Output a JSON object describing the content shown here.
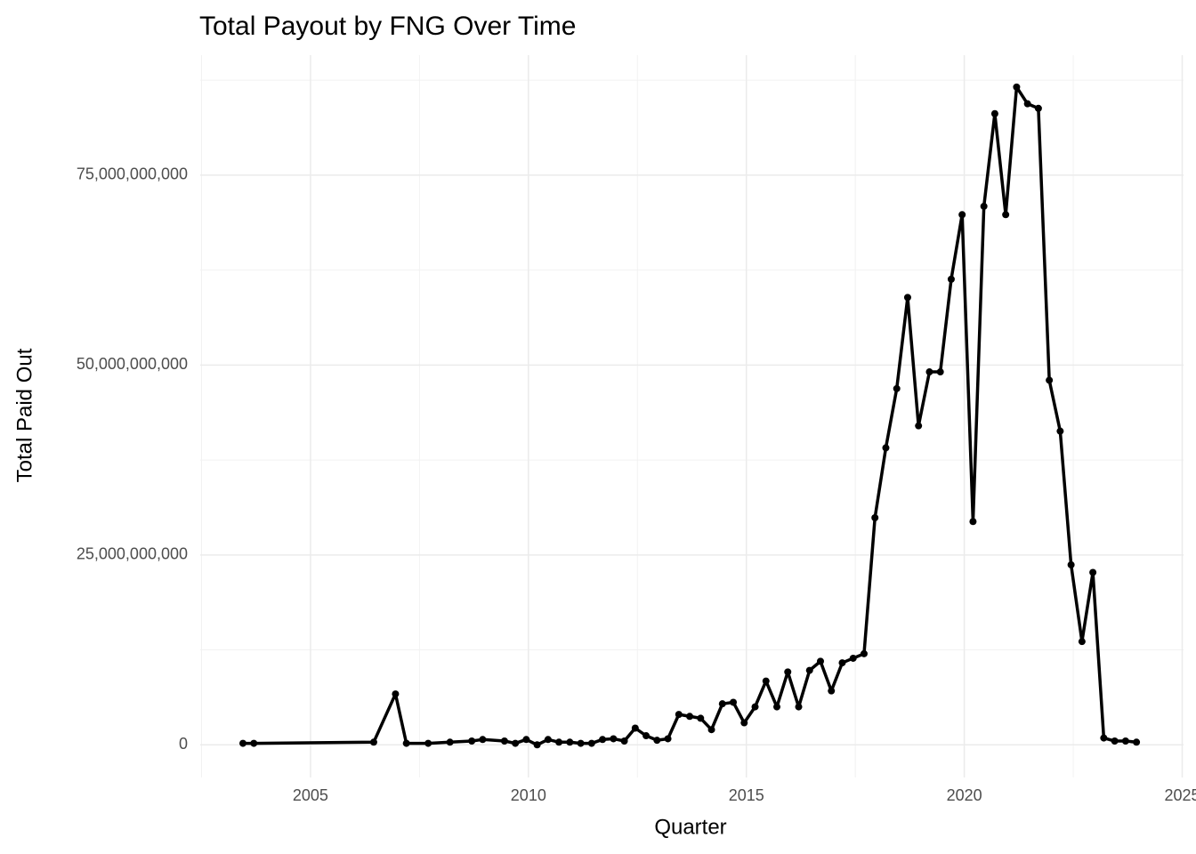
{
  "chart_data": {
    "type": "line",
    "title": "Total Payout by FNG Over Time",
    "x_label": "Quarter",
    "y_label": "Total Paid Out",
    "x": [
      2003.45,
      2003.7,
      2006.45,
      2006.95,
      2007.2,
      2007.7,
      2008.2,
      2008.7,
      2008.95,
      2009.45,
      2009.7,
      2009.95,
      2010.2,
      2010.45,
      2010.7,
      2010.95,
      2011.2,
      2011.45,
      2011.7,
      2011.95,
      2012.2,
      2012.45,
      2012.7,
      2012.95,
      2013.2,
      2013.45,
      2013.7,
      2013.95,
      2014.2,
      2014.45,
      2014.7,
      2014.95,
      2015.2,
      2015.45,
      2015.7,
      2015.95,
      2016.2,
      2016.45,
      2016.7,
      2016.95,
      2017.2,
      2017.45,
      2017.7,
      2017.95,
      2018.2,
      2018.45,
      2018.7,
      2018.95,
      2019.2,
      2019.45,
      2019.7,
      2019.95,
      2020.2,
      2020.45,
      2020.7,
      2020.95,
      2021.2,
      2021.45,
      2021.7,
      2021.95,
      2022.2,
      2022.45,
      2022.7,
      2022.95,
      2023.2,
      2023.45,
      2023.7,
      2023.95
    ],
    "series": [
      {
        "name": "Total Paid Out",
        "color": "#000000",
        "values": [
          200000000,
          200000000,
          350000000,
          6700000000,
          200000000,
          200000000,
          350000000,
          500000000,
          700000000,
          500000000,
          200000000,
          700000000,
          0,
          700000000,
          350000000,
          350000000,
          200000000,
          200000000,
          700000000,
          800000000,
          500000000,
          2200000000,
          1200000000,
          600000000,
          800000000,
          4000000000,
          3750000000,
          3500000000,
          2000000000,
          5400000000,
          5600000000,
          2900000000,
          5000000000,
          8400000000,
          5000000000,
          9600000000,
          5000000000,
          9800000000,
          11000000000,
          7100000000,
          10800000000,
          11400000000,
          12000000000,
          29900000000,
          39100000000,
          46900000000,
          58900000000,
          42000000000,
          49100000000,
          49100000000,
          61300000000,
          69800000000,
          29400000000,
          70900000000,
          83100000000,
          69800000000,
          86600000000,
          84400000000,
          83800000000,
          48000000000,
          41300000000,
          23700000000,
          13600000000,
          22700000000,
          900000000,
          500000000,
          500000000,
          350000000
        ]
      }
    ],
    "xlim": [
      2002.47,
      2025.03
    ],
    "ylim": [
      -4300000000,
      90800000000
    ],
    "xticks": [
      2005,
      2010,
      2015,
      2020,
      2025
    ],
    "yticks": [
      0,
      {
        "value": 25000000000,
        "label": "25,000,000,000"
      },
      {
        "value": 50000000000,
        "label": "50,000,000,000"
      },
      {
        "value": 75000000000,
        "label": "75,000,000,000"
      }
    ],
    "grid": true,
    "minor_grid": true
  }
}
